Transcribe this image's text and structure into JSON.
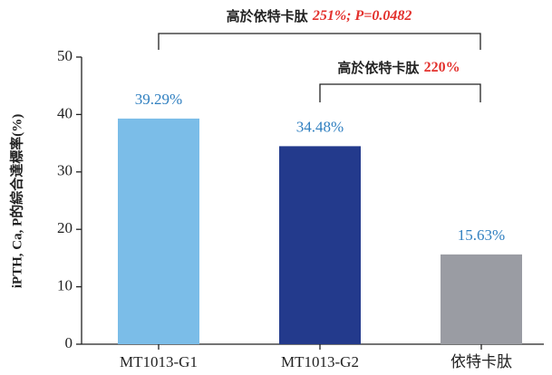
{
  "chart_data": {
    "type": "bar",
    "y_label": "iPTH, Ca, P的綜合達標率(%)",
    "categories": [
      "MT1013-G1",
      "MT1013-G2",
      "依特卡肽"
    ],
    "values": [
      39.29,
      34.48,
      15.63
    ],
    "value_labels": [
      "39.29%",
      "34.48%",
      "15.63%"
    ],
    "colors": [
      "#7bbde8",
      "#233a8c",
      "#9a9ca3"
    ],
    "ylim": [
      0,
      50
    ],
    "yticks": [
      0,
      10,
      20,
      30,
      40,
      50
    ],
    "annotations": [
      {
        "text": "高於依特卡肽",
        "highlight": "251%; P=0.0482"
      },
      {
        "text": "高於依特卡肽",
        "highlight": "220%"
      }
    ]
  }
}
